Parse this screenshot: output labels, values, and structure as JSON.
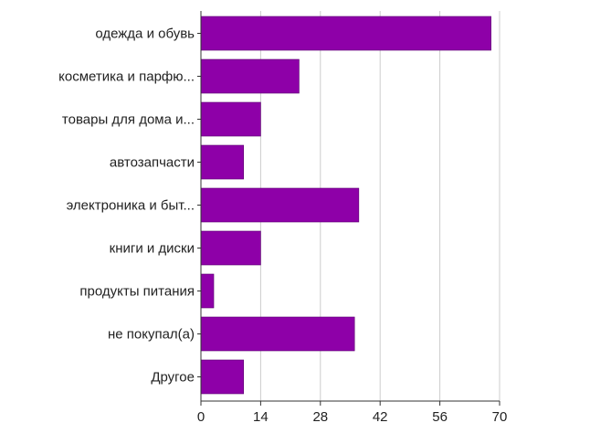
{
  "chart_data": {
    "type": "bar",
    "orientation": "horizontal",
    "categories": [
      "одежда и обувь",
      "косметика и парфю...",
      "товары для дома и...",
      "автозапчасти",
      "электроника и быт...",
      "книги и диски",
      "продукты питания",
      "не покупал(а)",
      "Другое"
    ],
    "values": [
      68,
      23,
      14,
      10,
      37,
      14,
      3,
      36,
      10
    ],
    "xlim": [
      0,
      70
    ],
    "xticks": [
      0,
      14,
      28,
      42,
      56,
      70
    ],
    "xtick_labels": [
      "0",
      "14",
      "28",
      "42",
      "56",
      "70"
    ],
    "grid": true,
    "legend": "none",
    "bar_color": "#8e00a8",
    "bar_edge_color": "#5a0070",
    "grid_color": "#cccccc",
    "axis_color": "#333333"
  }
}
